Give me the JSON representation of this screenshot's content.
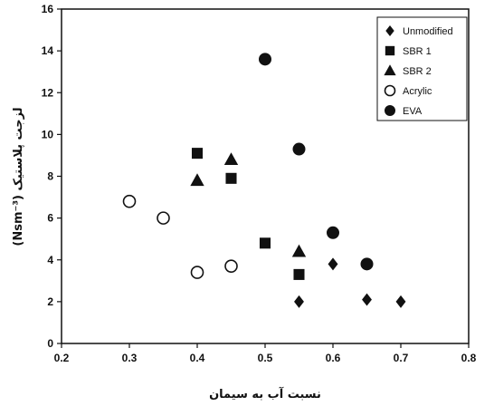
{
  "chart_data": {
    "type": "scatter",
    "xlabel": "نسبت آب به سیمان",
    "ylabel": "(Nsm⁻³) لزجت پلاستیک",
    "xlim": [
      0.2,
      0.8
    ],
    "ylim": [
      0,
      16
    ],
    "xticks": [
      "0.2",
      "0.3",
      "0.4",
      "0.5",
      "0.6",
      "0.7",
      "0.8"
    ],
    "yticks": [
      "0",
      "2",
      "4",
      "6",
      "8",
      "10",
      "12",
      "14",
      "16"
    ],
    "legend_position": "top-right",
    "grid": false,
    "series": [
      {
        "name": "Unmodified",
        "marker": "diamond",
        "filled": true,
        "points": [
          [
            0.55,
            2.0
          ],
          [
            0.6,
            3.8
          ],
          [
            0.65,
            2.1
          ],
          [
            0.7,
            2.0
          ]
        ]
      },
      {
        "name": "SBR 1",
        "marker": "square",
        "filled": true,
        "points": [
          [
            0.4,
            9.1
          ],
          [
            0.45,
            7.9
          ],
          [
            0.5,
            4.8
          ],
          [
            0.55,
            3.3
          ]
        ]
      },
      {
        "name": "SBR 2",
        "marker": "triangle",
        "filled": true,
        "points": [
          [
            0.4,
            7.8
          ],
          [
            0.45,
            8.8
          ],
          [
            0.55,
            4.4
          ]
        ]
      },
      {
        "name": "Acrylic",
        "marker": "circle",
        "filled": false,
        "points": [
          [
            0.3,
            6.8
          ],
          [
            0.35,
            6.0
          ],
          [
            0.4,
            3.4
          ],
          [
            0.45,
            3.7
          ]
        ]
      },
      {
        "name": "EVA",
        "marker": "circle",
        "filled": true,
        "points": [
          [
            0.5,
            13.6
          ],
          [
            0.55,
            9.3
          ],
          [
            0.6,
            5.3
          ],
          [
            0.65,
            3.8
          ]
        ]
      }
    ]
  }
}
